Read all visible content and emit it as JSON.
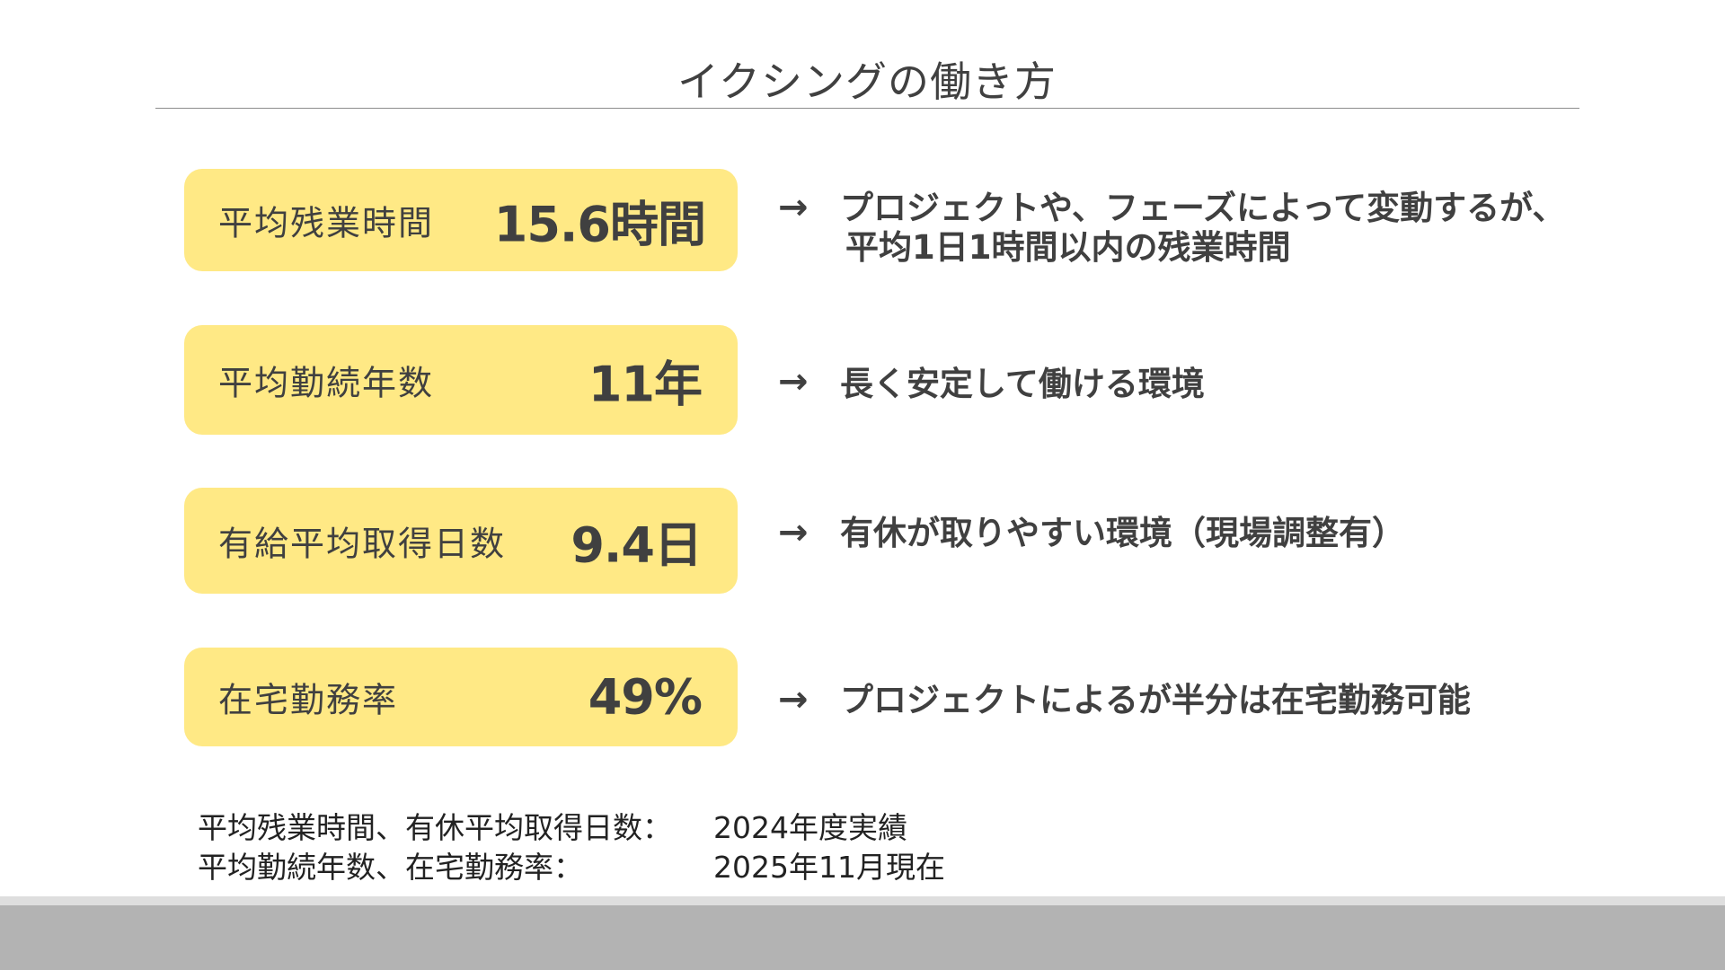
{
  "slide": {
    "title": "イクシングの働き方",
    "metrics": [
      {
        "label": "平均残業時間",
        "value": "15.6時間",
        "arrow": "→",
        "description_line1": "プロジェクトや、フェーズによって変動するが、",
        "description_line2": "平均1日1時間以内の残業時間"
      },
      {
        "label": "平均勤続年数",
        "value": "11年",
        "arrow": "→",
        "description_line1": "長く安定して働ける環境",
        "description_line2": ""
      },
      {
        "label": "有給平均取得日数",
        "value": "9.4日",
        "arrow": "→",
        "description_line1": "有休が取りやすい環境（現場調整有）",
        "description_line2": ""
      },
      {
        "label": "在宅勤務率",
        "value": "49%",
        "arrow": "→",
        "description_line1": "プロジェクトによるが半分は在宅勤務可能",
        "description_line2": ""
      }
    ],
    "notes": [
      {
        "key": "平均残業時間、有休平均取得日数：",
        "value": "2024年度実績"
      },
      {
        "key": "平均勤続年数、在宅勤務率：",
        "value": "2025年11月現在"
      }
    ]
  },
  "colors": {
    "box_fill": "#ffe985",
    "text": "#404040",
    "footer": "#b3b3b3"
  }
}
